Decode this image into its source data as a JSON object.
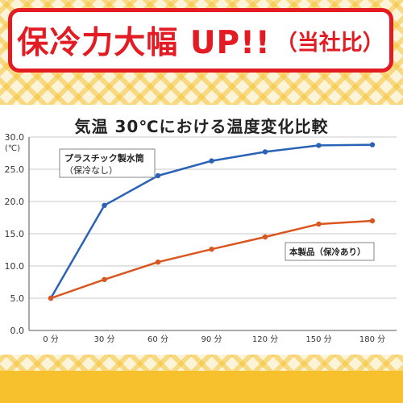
{
  "banner": {
    "headline": "保冷力大幅 UP!!",
    "note": "（当社比）"
  },
  "colors": {
    "banner_red": "#e31b23",
    "accent_yellow": "#f6c12c",
    "series_plastic": "#2a63b6",
    "series_product": "#d9561f"
  },
  "chart_data": {
    "type": "line",
    "title": "気温 30℃における温度変化比較",
    "xlabel": "",
    "ylabel": "",
    "y_unit": "(℃)",
    "ylim": [
      0,
      30
    ],
    "grid": "horizontal",
    "categories": [
      "0 分",
      "30 分",
      "60 分",
      "90 分",
      "120 分",
      "150 分",
      "180 分"
    ],
    "y_ticks": [
      "0.0",
      "5.0",
      "10.0",
      "15.0",
      "20.0",
      "25.0",
      "30.0"
    ],
    "series": [
      {
        "name": "プラスチック製水筒（保冷なし）",
        "label_line1": "プラスチック製水筒",
        "label_line2": "（保冷なし）",
        "color": "#2a63b6",
        "values": [
          5.0,
          19.4,
          24.0,
          26.3,
          27.7,
          28.7,
          28.8
        ]
      },
      {
        "name": "本製品（保冷あり）",
        "label_line1": "本製品（保冷あり）",
        "color": "#d9561f",
        "values": [
          5.0,
          7.9,
          10.6,
          12.6,
          14.5,
          16.5,
          17.0
        ]
      }
    ]
  }
}
